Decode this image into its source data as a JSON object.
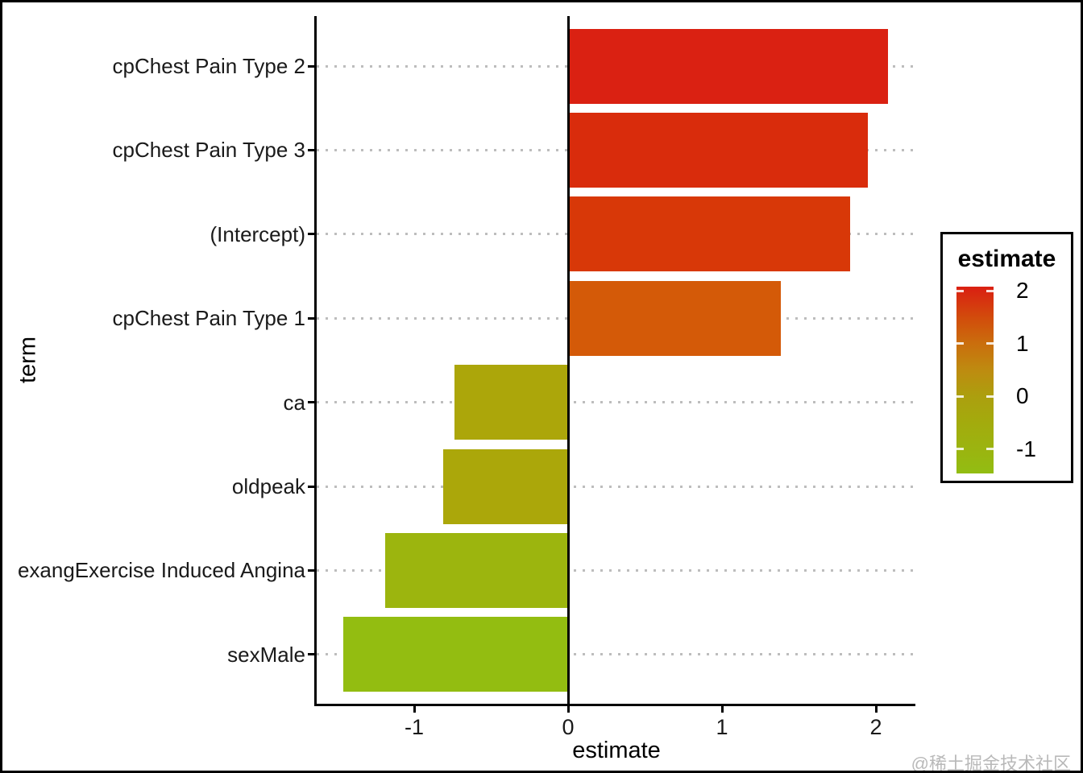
{
  "chart_data": {
    "type": "bar",
    "orientation": "horizontal",
    "title": "",
    "xlabel": "estimate",
    "ylabel": "term",
    "categories": [
      "cpChest Pain Type 2",
      "cpChest Pain Type 3",
      "(Intercept)",
      "cpChest Pain Type 1",
      "ca",
      "oldpeak",
      "exangExercise Induced Angina",
      "sexMale"
    ],
    "values": [
      2.08,
      1.95,
      1.83,
      1.38,
      -0.74,
      -0.81,
      -1.19,
      -1.46
    ],
    "bar_colors": [
      "#DA2112",
      "#D92C0C",
      "#D83808",
      "#D45A08",
      "#ACA60A",
      "#ABA70A",
      "#9CB50E",
      "#93BD11"
    ],
    "xlim": [
      -1.64,
      2.26
    ],
    "x_ticks": [
      -1,
      0,
      1,
      2
    ],
    "x_tick_labels": [
      "-1",
      "0",
      "1",
      "2"
    ],
    "grid": "horizontal-dotted",
    "zero_line": 0,
    "legend_position": "right"
  },
  "legend": {
    "title": "estimate",
    "range": [
      -1.46,
      2.08
    ],
    "tick_values": [
      2,
      1,
      0,
      -1
    ],
    "tick_labels": [
      "2",
      "1",
      "0",
      "-1"
    ],
    "gradient_stops": [
      {
        "value": 2.08,
        "color": "#DB2011"
      },
      {
        "value": 2.0,
        "color": "#D92511"
      },
      {
        "value": 1.5,
        "color": "#D24B0C"
      },
      {
        "value": 1.0,
        "color": "#CA6E0D"
      },
      {
        "value": 0.5,
        "color": "#BE8B10"
      },
      {
        "value": 0.0,
        "color": "#AC9F0E"
      },
      {
        "value": -0.5,
        "color": "#A3AB0D"
      },
      {
        "value": -1.0,
        "color": "#9BB410"
      },
      {
        "value": -1.46,
        "color": "#92BD12"
      }
    ]
  },
  "watermark": "@稀土掘金技术社区",
  "colors": {
    "axis_line": "#000000",
    "zero_line": "#000000",
    "grid_dots": "#BDBDBD",
    "background": "#FFFFFF",
    "text": "#1A1A1A"
  }
}
